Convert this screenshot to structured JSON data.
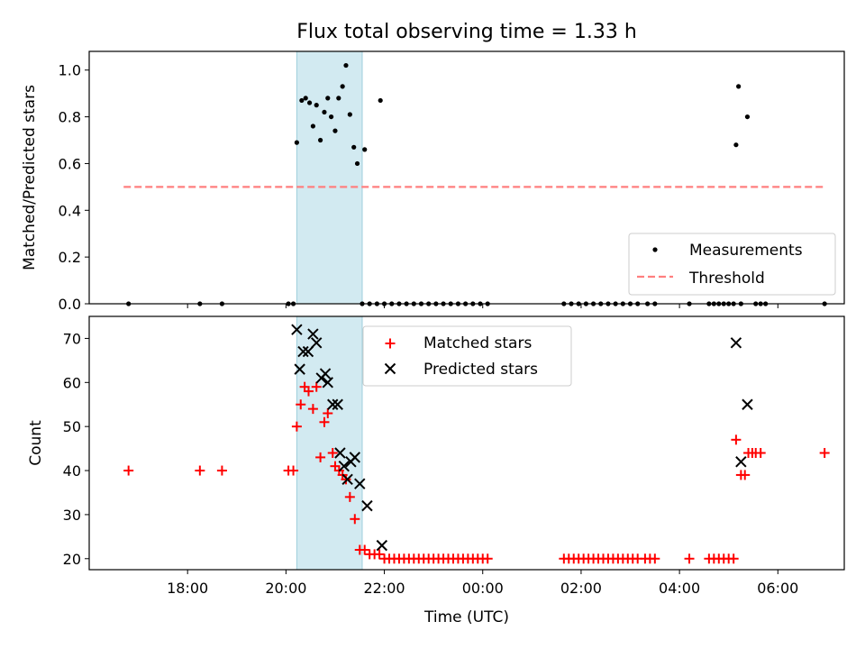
{
  "chart_data": {
    "title": "Flux total observing time = 1.33 h",
    "xlabel": "Time (UTC)",
    "x_unit": "hours since 00:00 UTC of the first day (values > 24 are the next day)",
    "xlim": [
      16.0,
      31.35
    ],
    "xticks": [
      {
        "value": 18,
        "label": "18:00"
      },
      {
        "value": 20,
        "label": "20:00"
      },
      {
        "value": 22,
        "label": "22:00"
      },
      {
        "value": 24,
        "label": "00:00"
      },
      {
        "value": 26,
        "label": "02:00"
      },
      {
        "value": 28,
        "label": "04:00"
      },
      {
        "value": 30,
        "label": "06:00"
      }
    ],
    "shaded_interval": {
      "x": [
        20.22,
        21.55
      ],
      "color": "#add8e6"
    },
    "top": {
      "type": "scatter",
      "ylabel": "Matched/Predicted stars",
      "ylim": [
        0,
        1.08
      ],
      "yticks": [
        0.0,
        0.2,
        0.4,
        0.6,
        0.8,
        1.0
      ],
      "ytick_labels": [
        "0.0",
        "0.2",
        "0.4",
        "0.6",
        "0.8",
        "1.0"
      ],
      "legend": {
        "position": "lower right",
        "entries": [
          "Measurements",
          "Threshold"
        ]
      },
      "series": [
        {
          "name": "Measurements",
          "color": "#000000",
          "marker": "dot",
          "points": [
            [
              16.8,
              0.0
            ],
            [
              18.25,
              0.0
            ],
            [
              18.7,
              0.0
            ],
            [
              20.05,
              0.0
            ],
            [
              20.15,
              0.0
            ],
            [
              20.22,
              0.69
            ],
            [
              20.32,
              0.87
            ],
            [
              20.4,
              0.88
            ],
            [
              20.48,
              0.86
            ],
            [
              20.55,
              0.76
            ],
            [
              20.62,
              0.85
            ],
            [
              20.7,
              0.7
            ],
            [
              20.78,
              0.82
            ],
            [
              20.85,
              0.88
            ],
            [
              20.92,
              0.8
            ],
            [
              21.0,
              0.74
            ],
            [
              21.07,
              0.88
            ],
            [
              21.15,
              0.93
            ],
            [
              21.22,
              1.02
            ],
            [
              21.3,
              0.81
            ],
            [
              21.38,
              0.67
            ],
            [
              21.45,
              0.6
            ],
            [
              21.6,
              0.66
            ],
            [
              21.92,
              0.87
            ],
            [
              21.55,
              0.0
            ],
            [
              21.7,
              0.0
            ],
            [
              21.85,
              0.0
            ],
            [
              22.0,
              0.0
            ],
            [
              22.15,
              0.0
            ],
            [
              22.3,
              0.0
            ],
            [
              22.45,
              0.0
            ],
            [
              22.6,
              0.0
            ],
            [
              22.75,
              0.0
            ],
            [
              22.9,
              0.0
            ],
            [
              23.05,
              0.0
            ],
            [
              23.2,
              0.0
            ],
            [
              23.35,
              0.0
            ],
            [
              23.5,
              0.0
            ],
            [
              23.65,
              0.0
            ],
            [
              23.8,
              0.0
            ],
            [
              23.95,
              0.0
            ],
            [
              24.1,
              0.0
            ],
            [
              25.65,
              0.0
            ],
            [
              25.8,
              0.0
            ],
            [
              25.95,
              0.0
            ],
            [
              26.1,
              0.0
            ],
            [
              26.25,
              0.0
            ],
            [
              26.4,
              0.0
            ],
            [
              26.55,
              0.0
            ],
            [
              26.7,
              0.0
            ],
            [
              26.85,
              0.0
            ],
            [
              27.0,
              0.0
            ],
            [
              27.15,
              0.0
            ],
            [
              27.35,
              0.0
            ],
            [
              27.5,
              0.0
            ],
            [
              28.2,
              0.0
            ],
            [
              28.6,
              0.0
            ],
            [
              28.7,
              0.0
            ],
            [
              28.8,
              0.0
            ],
            [
              28.9,
              0.0
            ],
            [
              29.0,
              0.0
            ],
            [
              29.1,
              0.0
            ],
            [
              29.25,
              0.0
            ],
            [
              29.55,
              0.0
            ],
            [
              29.65,
              0.0
            ],
            [
              29.75,
              0.0
            ],
            [
              30.95,
              0.0
            ],
            [
              29.15,
              0.68
            ],
            [
              29.2,
              0.93
            ],
            [
              29.38,
              0.8
            ]
          ]
        },
        {
          "name": "Threshold",
          "color": "#ff7f7f",
          "style": "dashed",
          "line": [
            [
              16.7,
              0.5
            ],
            [
              30.95,
              0.5
            ]
          ]
        }
      ]
    },
    "bottom": {
      "type": "scatter",
      "ylabel": "Count",
      "ylim": [
        17.5,
        75
      ],
      "yticks": [
        20,
        30,
        40,
        50,
        60,
        70
      ],
      "ytick_labels": [
        "20",
        "30",
        "40",
        "50",
        "60",
        "70"
      ],
      "legend": {
        "position": "upper center",
        "entries": [
          "Matched stars",
          "Predicted stars"
        ]
      },
      "series": [
        {
          "name": "Matched stars",
          "color": "#ff0000",
          "marker": "plus",
          "points": [
            [
              16.8,
              40
            ],
            [
              18.25,
              40
            ],
            [
              18.7,
              40
            ],
            [
              20.05,
              40
            ],
            [
              20.15,
              40
            ],
            [
              20.22,
              50
            ],
            [
              20.3,
              55
            ],
            [
              20.38,
              59
            ],
            [
              20.46,
              58
            ],
            [
              20.55,
              54
            ],
            [
              20.62,
              59
            ],
            [
              20.7,
              43
            ],
            [
              20.78,
              51
            ],
            [
              20.85,
              53
            ],
            [
              20.95,
              44
            ],
            [
              21.0,
              41
            ],
            [
              21.08,
              40
            ],
            [
              21.15,
              39
            ],
            [
              21.22,
              38
            ],
            [
              21.3,
              34
            ],
            [
              21.4,
              29
            ],
            [
              21.5,
              22
            ],
            [
              21.6,
              22
            ],
            [
              21.7,
              21
            ],
            [
              21.8,
              21
            ],
            [
              21.9,
              21
            ],
            [
              22.0,
              20
            ],
            [
              22.1,
              20
            ],
            [
              22.2,
              20
            ],
            [
              22.3,
              20
            ],
            [
              22.4,
              20
            ],
            [
              22.5,
              20
            ],
            [
              22.6,
              20
            ],
            [
              22.7,
              20
            ],
            [
              22.8,
              20
            ],
            [
              22.9,
              20
            ],
            [
              23.0,
              20
            ],
            [
              23.1,
              20
            ],
            [
              23.2,
              20
            ],
            [
              23.3,
              20
            ],
            [
              23.4,
              20
            ],
            [
              23.5,
              20
            ],
            [
              23.6,
              20
            ],
            [
              23.7,
              20
            ],
            [
              23.8,
              20
            ],
            [
              23.9,
              20
            ],
            [
              24.0,
              20
            ],
            [
              24.1,
              20
            ],
            [
              25.65,
              20
            ],
            [
              25.75,
              20
            ],
            [
              25.85,
              20
            ],
            [
              25.95,
              20
            ],
            [
              26.05,
              20
            ],
            [
              26.15,
              20
            ],
            [
              26.25,
              20
            ],
            [
              26.35,
              20
            ],
            [
              26.45,
              20
            ],
            [
              26.55,
              20
            ],
            [
              26.65,
              20
            ],
            [
              26.75,
              20
            ],
            [
              26.85,
              20
            ],
            [
              26.95,
              20
            ],
            [
              27.05,
              20
            ],
            [
              27.15,
              20
            ],
            [
              27.3,
              20
            ],
            [
              27.4,
              20
            ],
            [
              27.5,
              20
            ],
            [
              28.2,
              20
            ],
            [
              28.6,
              20
            ],
            [
              28.7,
              20
            ],
            [
              28.8,
              20
            ],
            [
              28.9,
              20
            ],
            [
              29.0,
              20
            ],
            [
              29.1,
              20
            ],
            [
              29.15,
              47
            ],
            [
              29.25,
              39
            ],
            [
              29.33,
              39
            ],
            [
              29.4,
              44
            ],
            [
              29.48,
              44
            ],
            [
              29.55,
              44
            ],
            [
              29.65,
              44
            ],
            [
              30.95,
              44
            ]
          ]
        },
        {
          "name": "Predicted stars",
          "color": "#000000",
          "marker": "x",
          "points": [
            [
              20.22,
              72
            ],
            [
              20.28,
              63
            ],
            [
              20.35,
              67
            ],
            [
              20.45,
              67
            ],
            [
              20.55,
              71
            ],
            [
              20.62,
              69
            ],
            [
              20.72,
              61
            ],
            [
              20.8,
              62
            ],
            [
              20.85,
              60
            ],
            [
              20.95,
              55
            ],
            [
              21.05,
              55
            ],
            [
              21.1,
              44
            ],
            [
              21.18,
              41
            ],
            [
              21.25,
              38
            ],
            [
              21.32,
              42
            ],
            [
              21.4,
              43
            ],
            [
              21.5,
              37
            ],
            [
              21.65,
              32
            ],
            [
              21.95,
              23
            ],
            [
              29.15,
              69
            ],
            [
              29.25,
              42
            ],
            [
              29.38,
              55
            ]
          ]
        }
      ]
    }
  }
}
